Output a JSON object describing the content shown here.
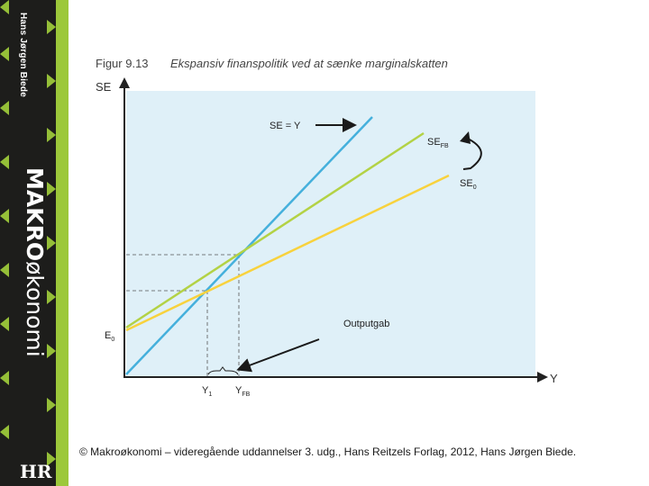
{
  "book": {
    "author": "Hans Jørgen Biede",
    "title_bold": "MAKRO",
    "title_light": "økonomi",
    "logo": "HR"
  },
  "figure": {
    "number": "Figur 9.13",
    "title": "Ekspansiv finanspolitik ved at sænke marginalskatten",
    "y_axis_label": "SE",
    "x_axis_label": "Y",
    "intercept_label": "E",
    "intercept_sub": "0",
    "line_se_y_label": "SE = Y",
    "line_sefb_label": "SE",
    "line_sefb_sub": "FB",
    "line_se0_label": "SE",
    "line_se0_sub": "0",
    "outputgap_label": "Outputgab",
    "y1_label": "Y",
    "y1_sub": "1",
    "yfb_label": "Y",
    "yfb_sub": "FB"
  },
  "colors": {
    "plot_bg": "#dff0f8",
    "se_y_line": "#45b0dc",
    "sefb_line": "#b3d245",
    "se0_line": "#f8d23d",
    "spine_bg": "#1d1d1b",
    "spine_accent": "#9cc83a"
  },
  "footer": {
    "copyright": "© Makroøkonomi – videregående uddannelser 3. udg., Hans Reitzels Forlag, 2012, Hans Jørgen Biede."
  }
}
